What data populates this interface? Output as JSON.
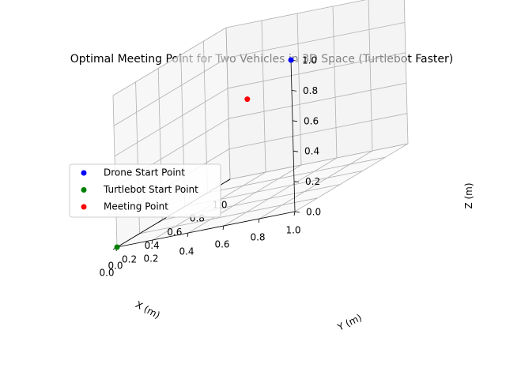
{
  "chart_data": {
    "type": "scatter",
    "projection": "3d",
    "title": "Optimal Meeting Point for Two Vehicles in 3D Space (Turtlebot Faster)",
    "xlabel": "X (m)",
    "ylabel": "Y (m)",
    "zlabel": "Z (m)",
    "xlim": [
      0,
      1
    ],
    "ylim": [
      0,
      1
    ],
    "zlim": [
      0,
      1
    ],
    "x_ticks": [
      "0.0",
      "0.2",
      "0.4",
      "0.6",
      "0.8",
      "1.0"
    ],
    "y_ticks": [
      "0.0",
      "0.2",
      "0.4",
      "0.6",
      "0.8",
      "1.0"
    ],
    "z_ticks": [
      "0.0",
      "0.2",
      "0.4",
      "0.6",
      "0.8",
      "1.0"
    ],
    "grid": true,
    "legend_position": "center-left",
    "series": [
      {
        "name": "Drone Start Point",
        "color": "#0000ff",
        "points": [
          {
            "x": 0,
            "y": 1,
            "z": 1
          }
        ]
      },
      {
        "name": "Turtlebot Start Point",
        "color": "#008000",
        "points": [
          {
            "x": 0,
            "y": 0,
            "z": 0
          }
        ]
      },
      {
        "name": "Meeting Point",
        "color": "#ff0000",
        "points": [
          {
            "x": 0,
            "y": 0.75,
            "z": 0.8
          }
        ]
      }
    ]
  }
}
